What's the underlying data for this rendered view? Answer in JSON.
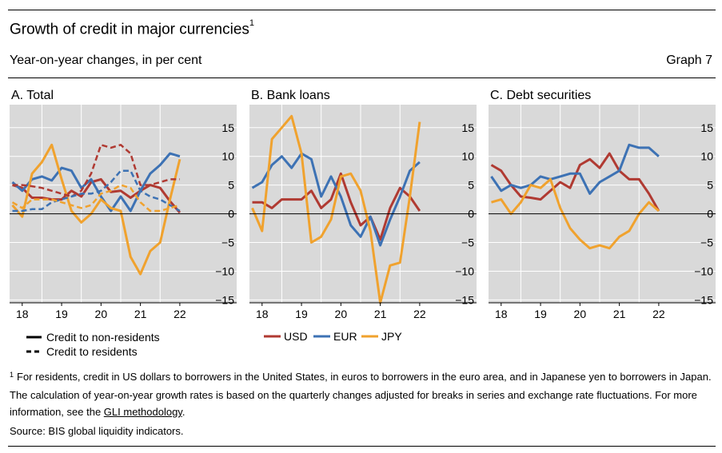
{
  "title": "Growth of credit in major currencies",
  "title_footnote_mark": "1",
  "subtitle": "Year-on-year changes, in per cent",
  "graph_number": "Graph 7",
  "colors": {
    "USD": "#b03a32",
    "EUR": "#3d72b4",
    "JPY": "#f0a22e",
    "panel_bg": "#d9d9d9"
  },
  "legend_line_styles": [
    {
      "label": "Credit to non-residents",
      "style": "solid"
    },
    {
      "label": "Credit to residents",
      "style": "dashed"
    }
  ],
  "legend_currencies": [
    {
      "label": "USD",
      "color": "#b03a32"
    },
    {
      "label": "EUR",
      "color": "#3d72b4"
    },
    {
      "label": "JPY",
      "color": "#f0a22e"
    }
  ],
  "footnote": {
    "mark": "1",
    "text": "For residents, credit in US dollars to borrowers in the United States, in euros to borrowers in the euro area, and in Japanese yen to borrowers in Japan. The calculation of year-on-year growth rates is based on the quarterly changes adjusted for breaks in series and exchange rate fluctuations. For more information, see the ",
    "link_text": "GLI methodology",
    "end": "."
  },
  "source": "Source: BIS global liquidity indicators.",
  "chart_data": [
    {
      "type": "line",
      "title": "A. Total",
      "xlabel": "",
      "ylabel": "",
      "x_ticks": [
        "18",
        "19",
        "20",
        "21",
        "22"
      ],
      "y_ticks": [
        15,
        10,
        5,
        0,
        -5,
        -10,
        -15
      ],
      "ylim": [
        -15.5,
        19
      ],
      "xlim": [
        2017.7,
        2022.55
      ],
      "x": [
        2017.75,
        2018.0,
        2018.25,
        2018.5,
        2018.75,
        2019.0,
        2019.25,
        2019.5,
        2019.75,
        2020.0,
        2020.25,
        2020.5,
        2020.75,
        2021.0,
        2021.25,
        2021.5,
        2021.75,
        2022.0
      ],
      "series": [
        {
          "name": "USD",
          "style": "solid",
          "values": [
            5.0,
            4.5,
            2.8,
            2.8,
            2.5,
            2.5,
            4.0,
            3.0,
            5.5,
            6.0,
            3.8,
            4.0,
            2.8,
            4.0,
            5.0,
            4.5,
            2.2,
            0.2
          ]
        },
        {
          "name": "EUR",
          "style": "solid",
          "values": [
            5.5,
            4.0,
            6.0,
            6.5,
            5.8,
            8.0,
            7.5,
            4.5,
            6.0,
            3.0,
            0.5,
            3.0,
            0.5,
            4.0,
            7.0,
            8.5,
            10.5,
            10.0
          ]
        },
        {
          "name": "JPY",
          "style": "solid",
          "values": [
            1.5,
            -0.5,
            7.0,
            9.0,
            12.0,
            6.0,
            0.5,
            -1.5,
            0.0,
            2.5,
            1.0,
            0.5,
            -7.5,
            -10.5,
            -6.5,
            -5.0,
            2.5,
            9.5
          ]
        },
        {
          "name": "USD",
          "style": "dashed",
          "values": [
            5.0,
            5.0,
            4.8,
            4.5,
            4.0,
            3.5,
            3.0,
            4.0,
            7.0,
            12.0,
            11.5,
            12.0,
            10.5,
            5.0,
            5.0,
            5.5,
            6.0,
            6.0
          ]
        },
        {
          "name": "EUR",
          "style": "dashed",
          "values": [
            0.5,
            0.5,
            0.8,
            0.8,
            2.0,
            2.5,
            3.0,
            3.5,
            3.5,
            4.0,
            5.5,
            7.5,
            7.5,
            4.0,
            3.0,
            2.5,
            1.5,
            0.5
          ]
        },
        {
          "name": "JPY",
          "style": "dashed",
          "values": [
            2.0,
            1.0,
            2.5,
            2.5,
            2.5,
            2.0,
            1.5,
            1.0,
            1.5,
            3.5,
            4.0,
            5.0,
            4.5,
            2.0,
            0.5,
            0.5,
            1.0,
            1.5
          ]
        }
      ]
    },
    {
      "type": "line",
      "title": "B. Bank loans",
      "xlabel": "",
      "ylabel": "",
      "x_ticks": [
        "18",
        "19",
        "20",
        "21",
        "22"
      ],
      "y_ticks": [
        15,
        10,
        5,
        0,
        -5,
        -10,
        -15
      ],
      "ylim": [
        -15.5,
        19
      ],
      "xlim": [
        2017.7,
        2022.55
      ],
      "x": [
        2017.75,
        2018.0,
        2018.25,
        2018.5,
        2018.75,
        2019.0,
        2019.25,
        2019.5,
        2019.75,
        2020.0,
        2020.25,
        2020.5,
        2020.75,
        2021.0,
        2021.25,
        2021.5,
        2021.75,
        2022.0
      ],
      "series": [
        {
          "name": "USD",
          "style": "solid",
          "values": [
            2.0,
            2.0,
            1.0,
            2.5,
            2.5,
            2.5,
            4.0,
            1.0,
            2.5,
            7.0,
            2.0,
            -2.0,
            -0.5,
            -4.5,
            1.0,
            4.5,
            3.0,
            0.5
          ]
        },
        {
          "name": "EUR",
          "style": "solid",
          "values": [
            4.5,
            5.5,
            8.5,
            10.0,
            8.0,
            10.5,
            9.5,
            3.0,
            6.5,
            3.0,
            -2.0,
            -4.0,
            -0.5,
            -5.5,
            -1.0,
            3.0,
            7.5,
            9.0
          ]
        },
        {
          "name": "JPY",
          "style": "solid",
          "values": [
            1.0,
            -3.0,
            13.0,
            15.0,
            17.0,
            10.5,
            -5.0,
            -4.0,
            -1.0,
            6.5,
            7.0,
            4.0,
            -3.0,
            -15.5,
            -9.0,
            -8.5,
            3.0,
            16.0
          ]
        }
      ]
    },
    {
      "type": "line",
      "title": "C. Debt securities",
      "xlabel": "",
      "ylabel": "",
      "x_ticks": [
        "18",
        "19",
        "20",
        "21",
        "22"
      ],
      "y_ticks": [
        15,
        10,
        5,
        0,
        -5,
        -10,
        -15
      ],
      "ylim": [
        -15.5,
        19
      ],
      "xlim": [
        2017.7,
        2022.55
      ],
      "x": [
        2017.75,
        2018.0,
        2018.25,
        2018.5,
        2018.75,
        2019.0,
        2019.25,
        2019.5,
        2019.75,
        2020.0,
        2020.25,
        2020.5,
        2020.75,
        2021.0,
        2021.25,
        2021.5,
        2021.75,
        2022.0
      ],
      "series": [
        {
          "name": "USD",
          "style": "solid",
          "values": [
            8.5,
            7.5,
            5.0,
            3.0,
            2.8,
            2.5,
            4.0,
            5.5,
            4.5,
            8.5,
            9.5,
            8.0,
            10.5,
            7.5,
            6.0,
            6.0,
            3.5,
            0.5
          ]
        },
        {
          "name": "EUR",
          "style": "solid",
          "values": [
            6.5,
            4.0,
            5.0,
            4.5,
            5.0,
            6.5,
            6.0,
            6.5,
            7.0,
            7.0,
            3.5,
            5.5,
            6.5,
            7.5,
            12.0,
            11.5,
            11.5,
            10.0
          ]
        },
        {
          "name": "JPY",
          "style": "solid",
          "values": [
            2.0,
            2.5,
            0.0,
            2.0,
            5.0,
            4.5,
            6.0,
            1.0,
            -2.5,
            -4.5,
            -6.0,
            -5.5,
            -6.0,
            -4.0,
            -3.0,
            0.0,
            2.0,
            0.5
          ]
        }
      ]
    }
  ]
}
